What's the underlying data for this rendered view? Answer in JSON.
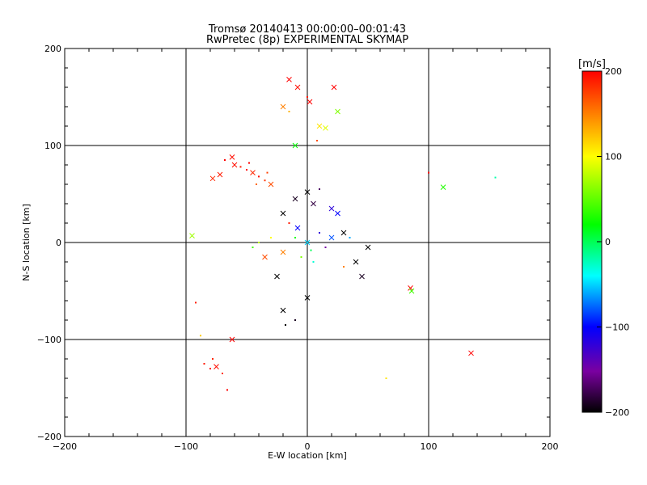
{
  "chart_data": {
    "type": "scatter",
    "title": "Tromsø 20140413 00:00:00–00:01:43",
    "subtitle": "RwPretec (8p) EXPERIMENTAL SKYMAP",
    "xlabel": "E-W location [km]",
    "ylabel": "N-S location [km]",
    "xlim": [
      -200,
      200
    ],
    "ylim": [
      -200,
      200
    ],
    "xticks": [
      "−200",
      "−100",
      "0",
      "100",
      "200"
    ],
    "yticks": [
      "−200",
      "−100",
      "0",
      "100",
      "200"
    ],
    "grid": true,
    "colorbar": {
      "label": "[m/s]",
      "range": [
        -200,
        200
      ],
      "ticks": [
        "200",
        "100",
        "0",
        "−100",
        "−200"
      ],
      "colormap": "rainbow"
    },
    "points": [
      {
        "x": -60,
        "y": 80,
        "v": 195,
        "m": "x"
      },
      {
        "x": -55,
        "y": 78,
        "v": 190,
        "m": "dot"
      },
      {
        "x": -50,
        "y": 75,
        "v": 200,
        "m": "dot"
      },
      {
        "x": -45,
        "y": 72,
        "v": 185,
        "m": "x"
      },
      {
        "x": -40,
        "y": 68,
        "v": 195,
        "m": "dot"
      },
      {
        "x": -35,
        "y": 64,
        "v": 180,
        "m": "dot"
      },
      {
        "x": -30,
        "y": 60,
        "v": 170,
        "m": "x"
      },
      {
        "x": -68,
        "y": 85,
        "v": 200,
        "m": "dot"
      },
      {
        "x": -72,
        "y": 70,
        "v": 190,
        "m": "x"
      },
      {
        "x": -42,
        "y": 60,
        "v": 160,
        "m": "dot"
      },
      {
        "x": -62,
        "y": 88,
        "v": 195,
        "m": "x"
      },
      {
        "x": -48,
        "y": 82,
        "v": 200,
        "m": "dot"
      },
      {
        "x": -78,
        "y": 66,
        "v": 185,
        "m": "x"
      },
      {
        "x": -33,
        "y": 72,
        "v": 175,
        "m": "dot"
      },
      {
        "x": -15,
        "y": 168,
        "v": 200,
        "m": "x"
      },
      {
        "x": -8,
        "y": 160,
        "v": 195,
        "m": "x"
      },
      {
        "x": 0,
        "y": 150,
        "v": 190,
        "m": "dot"
      },
      {
        "x": 2,
        "y": 145,
        "v": 200,
        "m": "x"
      },
      {
        "x": 22,
        "y": 160,
        "v": 200,
        "m": "x"
      },
      {
        "x": -20,
        "y": 140,
        "v": 150,
        "m": "x"
      },
      {
        "x": -15,
        "y": 135,
        "v": 130,
        "m": "dot"
      },
      {
        "x": 10,
        "y": 120,
        "v": 110,
        "m": "x"
      },
      {
        "x": 15,
        "y": 118,
        "v": 90,
        "m": "x"
      },
      {
        "x": 25,
        "y": 135,
        "v": 60,
        "m": "x"
      },
      {
        "x": 8,
        "y": 105,
        "v": 170,
        "m": "dot"
      },
      {
        "x": -10,
        "y": 100,
        "v": 20,
        "m": "x"
      },
      {
        "x": -80,
        "y": -130,
        "v": 200,
        "m": "dot"
      },
      {
        "x": -85,
        "y": -125,
        "v": 190,
        "m": "dot"
      },
      {
        "x": -78,
        "y": -120,
        "v": 185,
        "m": "dot"
      },
      {
        "x": -75,
        "y": -128,
        "v": 195,
        "m": "x"
      },
      {
        "x": -70,
        "y": -135,
        "v": 180,
        "m": "dot"
      },
      {
        "x": -66,
        "y": -152,
        "v": 200,
        "m": "dot"
      },
      {
        "x": -62,
        "y": -100,
        "v": 200,
        "m": "x"
      },
      {
        "x": -92,
        "y": -62,
        "v": 190,
        "m": "dot"
      },
      {
        "x": -95,
        "y": 7,
        "v": 70,
        "m": "x"
      },
      {
        "x": 135,
        "y": -114,
        "v": 200,
        "m": "x"
      },
      {
        "x": 100,
        "y": 72,
        "v": 200,
        "m": "dot"
      },
      {
        "x": 112,
        "y": 57,
        "v": 30,
        "m": "x"
      },
      {
        "x": 85,
        "y": -47,
        "v": 200,
        "m": "x"
      },
      {
        "x": 86,
        "y": -50,
        "v": 40,
        "m": "x"
      },
      {
        "x": 155,
        "y": 67,
        "v": -20,
        "m": "dot"
      },
      {
        "x": 65,
        "y": -140,
        "v": 110,
        "m": "dot"
      },
      {
        "x": -88,
        "y": -96,
        "v": 120,
        "m": "dot"
      },
      {
        "x": -20,
        "y": 30,
        "v": -200,
        "m": "x"
      },
      {
        "x": -10,
        "y": 45,
        "v": -190,
        "m": "x"
      },
      {
        "x": 0,
        "y": 52,
        "v": -200,
        "m": "x"
      },
      {
        "x": 5,
        "y": 40,
        "v": -180,
        "m": "x"
      },
      {
        "x": 10,
        "y": 55,
        "v": -170,
        "m": "dot"
      },
      {
        "x": 20,
        "y": 35,
        "v": -120,
        "m": "x"
      },
      {
        "x": 25,
        "y": 30,
        "v": -100,
        "m": "x"
      },
      {
        "x": 30,
        "y": 10,
        "v": -200,
        "m": "x"
      },
      {
        "x": 40,
        "y": -20,
        "v": -200,
        "m": "x"
      },
      {
        "x": 45,
        "y": -35,
        "v": -190,
        "m": "x"
      },
      {
        "x": 50,
        "y": -5,
        "v": -200,
        "m": "x"
      },
      {
        "x": -25,
        "y": -35,
        "v": -200,
        "m": "x"
      },
      {
        "x": -20,
        "y": -70,
        "v": -200,
        "m": "x"
      },
      {
        "x": -18,
        "y": -85,
        "v": -200,
        "m": "dot"
      },
      {
        "x": -10,
        "y": -80,
        "v": -190,
        "m": "dot"
      },
      {
        "x": 0,
        "y": -57,
        "v": -200,
        "m": "x"
      },
      {
        "x": -30,
        "y": 5,
        "v": 100,
        "m": "dot"
      },
      {
        "x": -40,
        "y": 0,
        "v": 80,
        "m": "dot"
      },
      {
        "x": -20,
        "y": -10,
        "v": 150,
        "m": "x"
      },
      {
        "x": -10,
        "y": 5,
        "v": 20,
        "m": "dot"
      },
      {
        "x": 0,
        "y": 0,
        "v": -50,
        "m": "x"
      },
      {
        "x": 10,
        "y": 10,
        "v": -120,
        "m": "dot"
      },
      {
        "x": 15,
        "y": -5,
        "v": -150,
        "m": "dot"
      },
      {
        "x": 20,
        "y": 5,
        "v": -80,
        "m": "x"
      },
      {
        "x": -5,
        "y": -15,
        "v": 60,
        "m": "dot"
      },
      {
        "x": 5,
        "y": -20,
        "v": -30,
        "m": "dot"
      },
      {
        "x": -15,
        "y": 20,
        "v": 190,
        "m": "dot"
      },
      {
        "x": -35,
        "y": -15,
        "v": 170,
        "m": "x"
      },
      {
        "x": 30,
        "y": -25,
        "v": 150,
        "m": "dot"
      },
      {
        "x": -45,
        "y": -5,
        "v": 40,
        "m": "dot"
      },
      {
        "x": 35,
        "y": 5,
        "v": -60,
        "m": "dot"
      },
      {
        "x": -8,
        "y": 15,
        "v": -100,
        "m": "x"
      },
      {
        "x": 3,
        "y": -8,
        "v": 0,
        "m": "dot"
      }
    ]
  }
}
